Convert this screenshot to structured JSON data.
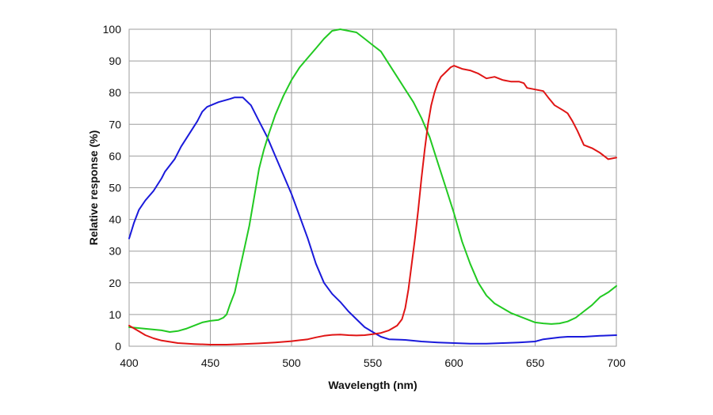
{
  "chart_data": {
    "type": "line",
    "title": "",
    "xlabel": "Wavelength (nm)",
    "ylabel": "Relative response (%)",
    "xlim": [
      400,
      700
    ],
    "ylim": [
      0,
      100
    ],
    "x_ticks": [
      400,
      450,
      500,
      550,
      600,
      650,
      700
    ],
    "y_ticks": [
      0,
      10,
      20,
      30,
      40,
      50,
      60,
      70,
      80,
      90,
      100
    ],
    "grid": true,
    "legend": "none",
    "series": [
      {
        "color": "#1a1adb",
        "points": [
          [
            400,
            34
          ],
          [
            403,
            39
          ],
          [
            406,
            43
          ],
          [
            410,
            46
          ],
          [
            415,
            49
          ],
          [
            420,
            53
          ],
          [
            422,
            55
          ],
          [
            428,
            59
          ],
          [
            432,
            63
          ],
          [
            437,
            67
          ],
          [
            442,
            71
          ],
          [
            445,
            74
          ],
          [
            448,
            75.5
          ],
          [
            455,
            77
          ],
          [
            462,
            78
          ],
          [
            465,
            78.5
          ],
          [
            470,
            78.5
          ],
          [
            475,
            76
          ],
          [
            480,
            71
          ],
          [
            485,
            66
          ],
          [
            490,
            60
          ],
          [
            495,
            54
          ],
          [
            500,
            48
          ],
          [
            505,
            41
          ],
          [
            510,
            34
          ],
          [
            515,
            26
          ],
          [
            520,
            20
          ],
          [
            525,
            16.5
          ],
          [
            530,
            14
          ],
          [
            535,
            11
          ],
          [
            540,
            8.5
          ],
          [
            545,
            6
          ],
          [
            550,
            4.5
          ],
          [
            555,
            3
          ],
          [
            560,
            2.2
          ],
          [
            570,
            2
          ],
          [
            580,
            1.5
          ],
          [
            590,
            1.2
          ],
          [
            600,
            1
          ],
          [
            610,
            0.8
          ],
          [
            620,
            0.8
          ],
          [
            630,
            1
          ],
          [
            640,
            1.2
          ],
          [
            650,
            1.5
          ],
          [
            655,
            2.2
          ],
          [
            660,
            2.5
          ],
          [
            665,
            2.8
          ],
          [
            670,
            3
          ],
          [
            680,
            3
          ],
          [
            690,
            3.3
          ],
          [
            700,
            3.5
          ]
        ]
      },
      {
        "color": "#22c922",
        "points": [
          [
            400,
            6
          ],
          [
            410,
            5.5
          ],
          [
            420,
            5
          ],
          [
            425,
            4.5
          ],
          [
            430,
            4.8
          ],
          [
            435,
            5.5
          ],
          [
            440,
            6.5
          ],
          [
            445,
            7.5
          ],
          [
            450,
            8
          ],
          [
            455,
            8.3
          ],
          [
            458,
            9
          ],
          [
            460,
            10
          ],
          [
            462,
            13
          ],
          [
            465,
            17
          ],
          [
            468,
            24
          ],
          [
            471,
            31
          ],
          [
            474,
            38
          ],
          [
            476,
            44
          ],
          [
            478,
            50
          ],
          [
            480,
            56
          ],
          [
            483,
            62
          ],
          [
            486,
            67
          ],
          [
            490,
            73
          ],
          [
            495,
            79
          ],
          [
            500,
            84
          ],
          [
            505,
            88
          ],
          [
            510,
            91
          ],
          [
            515,
            94
          ],
          [
            520,
            97
          ],
          [
            525,
            99.5
          ],
          [
            530,
            100
          ],
          [
            535,
            99.5
          ],
          [
            540,
            99
          ],
          [
            545,
            97
          ],
          [
            550,
            95
          ],
          [
            555,
            93
          ],
          [
            560,
            89
          ],
          [
            565,
            85
          ],
          [
            570,
            81
          ],
          [
            575,
            77
          ],
          [
            580,
            72
          ],
          [
            585,
            66
          ],
          [
            590,
            58
          ],
          [
            595,
            50
          ],
          [
            600,
            42
          ],
          [
            605,
            33
          ],
          [
            610,
            26
          ],
          [
            615,
            20
          ],
          [
            620,
            16
          ],
          [
            625,
            13.5
          ],
          [
            630,
            12
          ],
          [
            635,
            10.5
          ],
          [
            640,
            9.5
          ],
          [
            645,
            8.5
          ],
          [
            650,
            7.5
          ],
          [
            655,
            7.2
          ],
          [
            660,
            7
          ],
          [
            665,
            7.2
          ],
          [
            670,
            7.8
          ],
          [
            675,
            9
          ],
          [
            680,
            11
          ],
          [
            685,
            13
          ],
          [
            690,
            15.5
          ],
          [
            695,
            17
          ],
          [
            700,
            19
          ]
        ]
      },
      {
        "color": "#e01515",
        "points": [
          [
            400,
            6.5
          ],
          [
            405,
            5
          ],
          [
            410,
            3.5
          ],
          [
            415,
            2.5
          ],
          [
            420,
            1.8
          ],
          [
            430,
            1
          ],
          [
            440,
            0.7
          ],
          [
            450,
            0.5
          ],
          [
            460,
            0.5
          ],
          [
            470,
            0.7
          ],
          [
            480,
            0.9
          ],
          [
            490,
            1.2
          ],
          [
            500,
            1.6
          ],
          [
            505,
            1.9
          ],
          [
            510,
            2.2
          ],
          [
            515,
            2.8
          ],
          [
            520,
            3.3
          ],
          [
            525,
            3.6
          ],
          [
            530,
            3.7
          ],
          [
            535,
            3.5
          ],
          [
            540,
            3.4
          ],
          [
            545,
            3.5
          ],
          [
            550,
            3.8
          ],
          [
            555,
            4.2
          ],
          [
            560,
            5
          ],
          [
            565,
            6.5
          ],
          [
            568,
            8.5
          ],
          [
            570,
            12
          ],
          [
            572,
            18
          ],
          [
            574,
            26
          ],
          [
            576,
            34
          ],
          [
            578,
            43
          ],
          [
            580,
            53
          ],
          [
            582,
            62
          ],
          [
            584,
            70
          ],
          [
            586,
            76
          ],
          [
            588,
            80
          ],
          [
            590,
            83
          ],
          [
            592,
            85
          ],
          [
            595,
            86.5
          ],
          [
            598,
            88
          ],
          [
            600,
            88.5
          ],
          [
            605,
            87.5
          ],
          [
            610,
            87
          ],
          [
            615,
            86
          ],
          [
            620,
            84.5
          ],
          [
            625,
            85
          ],
          [
            630,
            84
          ],
          [
            635,
            83.5
          ],
          [
            640,
            83.5
          ],
          [
            643,
            83
          ],
          [
            645,
            81.5
          ],
          [
            650,
            81
          ],
          [
            655,
            80.5
          ],
          [
            658,
            78.5
          ],
          [
            662,
            76
          ],
          [
            667,
            74.5
          ],
          [
            670,
            73.5
          ],
          [
            673,
            71
          ],
          [
            676,
            68
          ],
          [
            680,
            63.5
          ],
          [
            685,
            62.5
          ],
          [
            690,
            61
          ],
          [
            695,
            59
          ],
          [
            700,
            59.5
          ]
        ]
      }
    ]
  }
}
